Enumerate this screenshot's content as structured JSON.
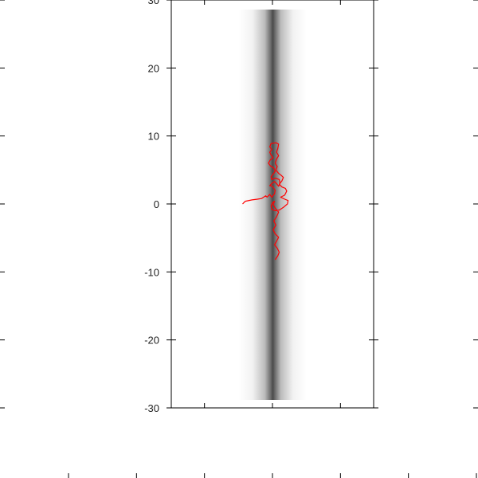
{
  "chart_data": {
    "type": "line",
    "title": "",
    "xlabel": "",
    "ylabel": "",
    "ylim": [
      -30,
      30
    ],
    "y_ticks": [
      -30,
      -20,
      -10,
      0,
      10,
      20,
      30
    ],
    "y_tick_labels": [
      "-30",
      "-20",
      "-10",
      "0",
      "10",
      "20",
      "30"
    ],
    "grid": false,
    "background": {
      "type": "intensity-band",
      "description_colors": [
        "#ffffff",
        "#444444"
      ]
    },
    "series": [
      {
        "color": "#ff0000",
        "points": [
          [
            -4.4,
            0.0
          ],
          [
            -4.0,
            0.4
          ],
          [
            -3.0,
            0.6
          ],
          [
            -2.2,
            0.7
          ],
          [
            -1.6,
            0.8
          ],
          [
            -1.0,
            1.2
          ],
          [
            -0.8,
            1.0
          ],
          [
            -0.4,
            1.4
          ],
          [
            -0.1,
            1.0
          ],
          [
            0.3,
            1.5
          ],
          [
            0.4,
            2.0
          ],
          [
            0.0,
            2.6
          ],
          [
            -0.4,
            2.7
          ],
          [
            -0.1,
            3.0
          ],
          [
            0.3,
            3.3
          ],
          [
            0.6,
            3.0
          ],
          [
            0.9,
            2.6
          ],
          [
            1.1,
            3.0
          ],
          [
            1.0,
            3.6
          ],
          [
            0.4,
            3.8
          ],
          [
            -0.1,
            3.6
          ],
          [
            -0.2,
            4.0
          ],
          [
            0.1,
            4.4
          ],
          [
            0.4,
            4.8
          ],
          [
            0.2,
            5.3
          ],
          [
            -0.3,
            5.6
          ],
          [
            -0.6,
            6.0
          ],
          [
            -0.3,
            6.5
          ],
          [
            0.1,
            6.8
          ],
          [
            -0.2,
            7.2
          ],
          [
            -0.4,
            7.6
          ],
          [
            -0.1,
            8.0
          ],
          [
            -0.4,
            8.4
          ],
          [
            -0.2,
            8.9
          ],
          [
            0.5,
            9.0
          ],
          [
            0.9,
            8.8
          ],
          [
            0.8,
            8.2
          ],
          [
            0.6,
            7.6
          ],
          [
            0.9,
            7.1
          ],
          [
            0.6,
            6.6
          ],
          [
            0.4,
            6.0
          ],
          [
            0.7,
            5.5
          ],
          [
            0.5,
            5.0
          ],
          [
            0.9,
            4.5
          ],
          [
            1.3,
            4.2
          ],
          [
            1.6,
            3.9
          ],
          [
            1.4,
            3.4
          ],
          [
            1.0,
            2.9
          ],
          [
            1.4,
            2.5
          ],
          [
            1.9,
            2.3
          ],
          [
            2.1,
            1.9
          ],
          [
            1.8,
            1.3
          ],
          [
            1.2,
            1.0
          ],
          [
            1.8,
            0.7
          ],
          [
            2.3,
            0.5
          ],
          [
            2.2,
            0.0
          ],
          [
            1.6,
            -0.5
          ],
          [
            1.0,
            -0.9
          ],
          [
            0.4,
            -1.0
          ],
          [
            -0.1,
            -0.8
          ],
          [
            -0.2,
            -0.3
          ],
          [
            0.0,
            0.2
          ],
          [
            0.3,
            0.4
          ],
          [
            0.1,
            -0.1
          ],
          [
            0.4,
            -0.6
          ],
          [
            0.9,
            -1.2
          ],
          [
            0.6,
            -1.9
          ],
          [
            0.2,
            -2.5
          ],
          [
            0.5,
            -3.1
          ],
          [
            0.1,
            -3.8
          ],
          [
            0.4,
            -4.4
          ],
          [
            0.9,
            -4.9
          ],
          [
            0.6,
            -5.5
          ],
          [
            0.3,
            -6.0
          ],
          [
            0.7,
            -6.5
          ],
          [
            1.0,
            -7.1
          ],
          [
            0.8,
            -7.6
          ],
          [
            0.4,
            -8.2
          ]
        ]
      }
    ]
  }
}
